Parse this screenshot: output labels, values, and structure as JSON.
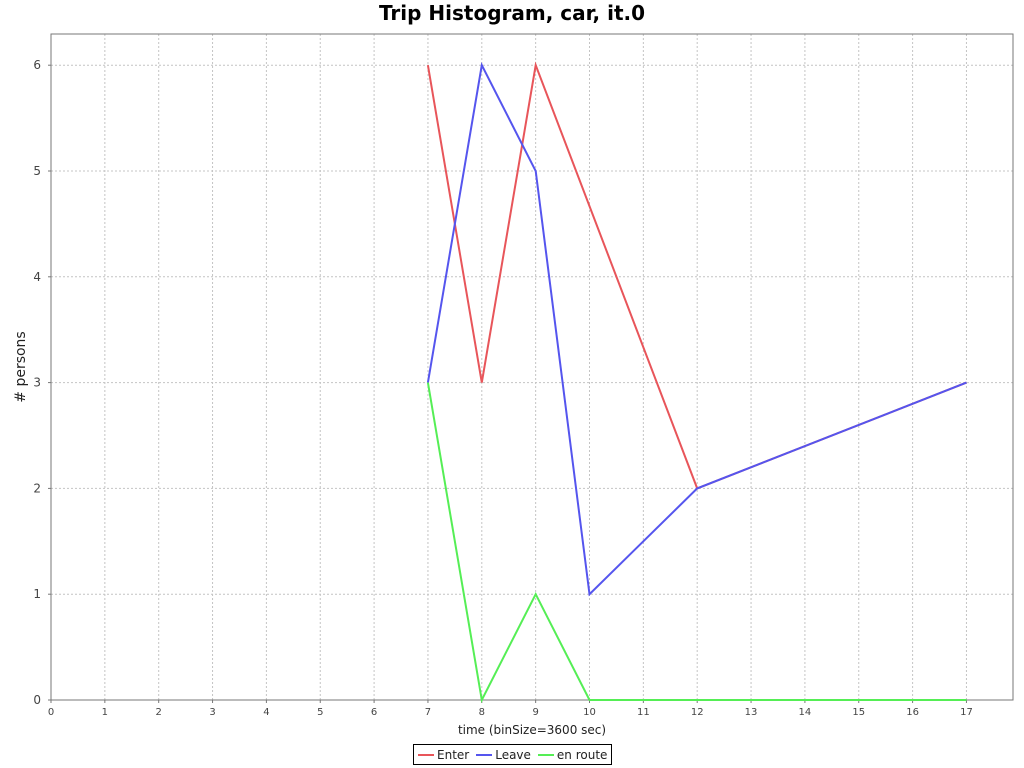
{
  "chart_data": {
    "type": "line",
    "title": "Trip Histogram, car, it.0",
    "xlabel": "time (binSize=3600 sec)",
    "ylabel": "# persons",
    "xlim": [
      0,
      18
    ],
    "ylim": [
      0,
      6.3
    ],
    "x_ticks": [
      "0",
      "1",
      "2",
      "3",
      "4",
      "5",
      "6",
      "7",
      "8",
      "9",
      "10",
      "11",
      "12",
      "13",
      "14",
      "15",
      "16",
      "17"
    ],
    "y_ticks": [
      "0",
      "1",
      "2",
      "3",
      "4",
      "5",
      "6"
    ],
    "grid": true,
    "legend_position": "bottom-center",
    "series": [
      {
        "name": "Enter",
        "color": "#e8555a",
        "x": [
          7,
          8,
          9,
          12,
          17
        ],
        "y": [
          6,
          3,
          6,
          2,
          3
        ]
      },
      {
        "name": "Leave",
        "color": "#5555ee",
        "x": [
          7,
          8,
          9,
          10,
          12,
          17
        ],
        "y": [
          3,
          6,
          5,
          1,
          2,
          3
        ]
      },
      {
        "name": "en route",
        "color": "#55ee55",
        "x": [
          7,
          8,
          9,
          10,
          17
        ],
        "y": [
          3,
          0,
          1,
          0,
          0
        ]
      }
    ]
  }
}
